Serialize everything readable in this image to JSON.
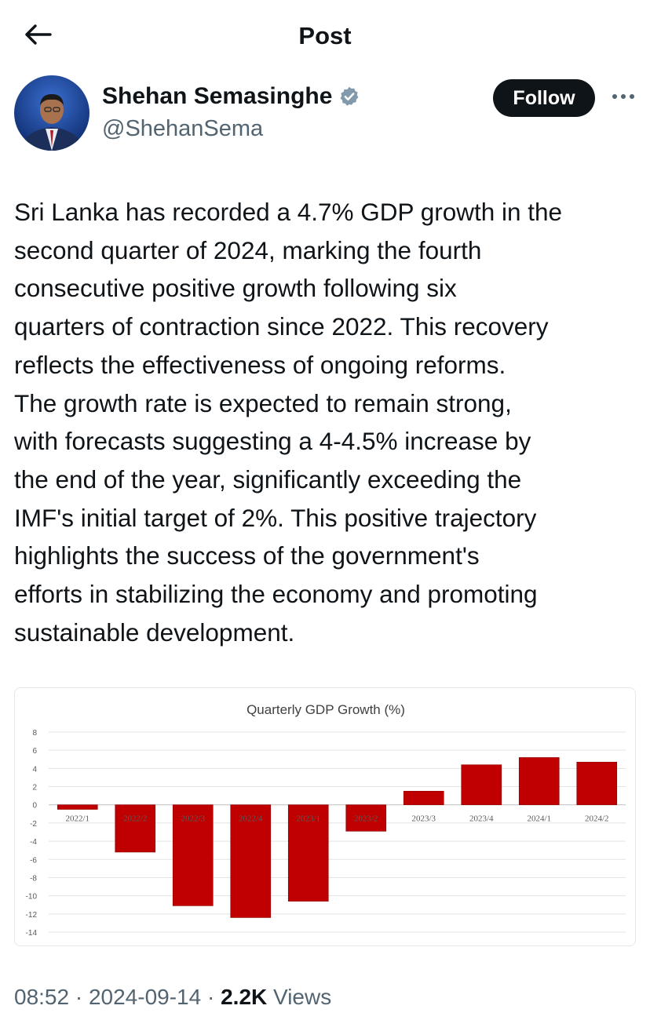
{
  "topbar": {
    "title": "Post"
  },
  "author": {
    "name": "Shehan Semasinghe",
    "handle": "@ShehanSema",
    "follow_label": "Follow"
  },
  "post": {
    "text": "Sri Lanka has recorded a 4.7% GDP growth in the\nsecond quarter of 2024, marking the fourth\nconsecutive positive growth following six\nquarters of contraction since 2022. This recovery\nreflects the effectiveness of ongoing reforms.\nThe growth rate is expected to remain strong,\nwith forecasts suggesting a 4-4.5% increase by\nthe end of the year, significantly exceeding the\nIMF's initial target of 2%. This positive trajectory\nhighlights the success of the government's\nefforts in stabilizing the economy and promoting\nsustainable development."
  },
  "meta": {
    "time": "08:52",
    "sep1": " · ",
    "date": "2024-09-14",
    "sep2": " · ",
    "views_count": "2.2K",
    "views_label": " Views"
  },
  "icons": {
    "back": "arrow-left-icon",
    "verified": "verified-badge-icon",
    "more": "more-dots-icon"
  },
  "colors": {
    "bar": "#c00000",
    "follow_bg": "#0f1419",
    "verified": "#829aab"
  },
  "chart_data": {
    "type": "bar",
    "title": "Quarterly GDP Growth (%)",
    "categories": [
      "2022/1",
      "2022/2",
      "2022/3",
      "2022/4",
      "2023/1",
      "2023/2",
      "2023/3",
      "2023/4",
      "2024/1",
      "2024/2"
    ],
    "values": [
      -0.5,
      -5.2,
      -11.1,
      -12.4,
      -10.6,
      -2.9,
      1.5,
      4.4,
      5.2,
      4.7
    ],
    "ylim": [
      -14,
      8
    ],
    "yticks": [
      8,
      6,
      4,
      2,
      0,
      -2,
      -4,
      -6,
      -8,
      -10,
      -12,
      -14
    ],
    "xlabel": "",
    "ylabel": "",
    "grid": true
  }
}
